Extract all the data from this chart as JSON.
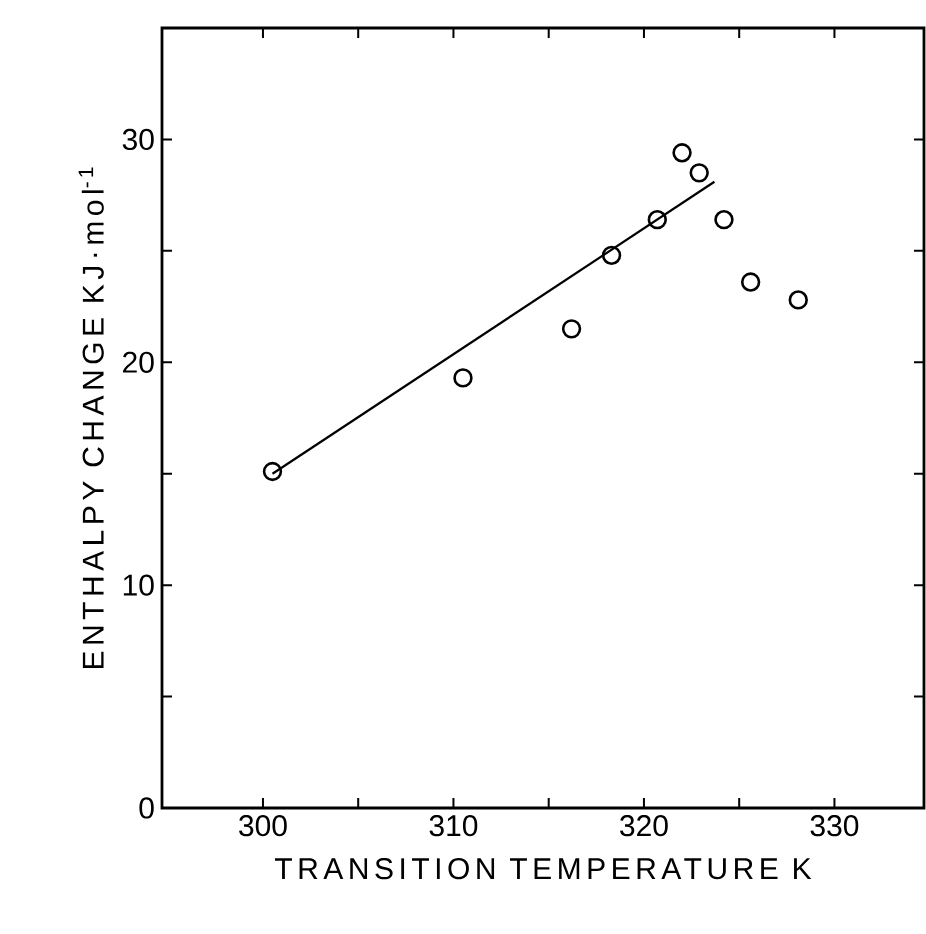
{
  "chart_data": {
    "type": "scatter",
    "xlabel": "TRANSITION TEMPERATURE  K",
    "ylabel": "ENTHALPY CHANGE  KJ·mol$^{-1}$",
    "series": [
      {
        "marker": "circle",
        "color": "#000000",
        "x": [
          300.5,
          310.5,
          316.2,
          318.3,
          320.7,
          322.0,
          322.9,
          324.2,
          325.6,
          328.1
        ],
        "values": [
          15.1,
          19.3,
          21.5,
          24.8,
          26.4,
          29.4,
          28.5,
          26.4,
          23.6,
          22.8
        ]
      },
      {
        "type": "line",
        "color": "#000000",
        "x": [
          300.5,
          323.7
        ],
        "values": [
          15.0,
          28.1
        ]
      }
    ],
    "xlim": [
      294.7,
      334.7
    ],
    "ylim": [
      0,
      35
    ],
    "xticks": [
      300,
      {
        "value": 305,
        "label": null
      },
      310,
      {
        "value": 315,
        "label": null
      },
      320,
      {
        "value": 325,
        "label": null
      },
      330
    ],
    "yticks": [
      0,
      {
        "value": 5,
        "label": null
      },
      10,
      {
        "value": 15,
        "label": null
      },
      20,
      {
        "value": 25,
        "label": null
      },
      30
    ]
  }
}
